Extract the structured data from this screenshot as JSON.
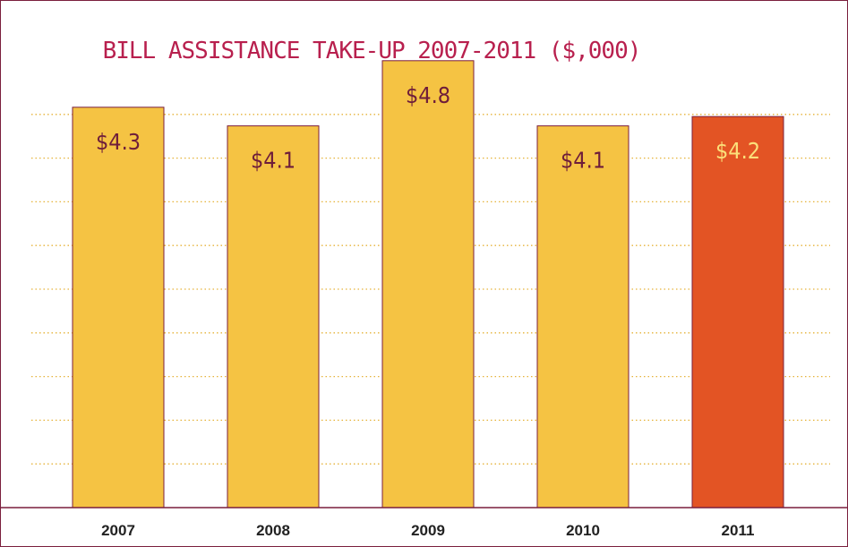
{
  "chart_data": {
    "type": "bar",
    "title": "BILL ASSISTANCE TAKE-UP 2007-2011 ($,000)",
    "xlabel": "",
    "ylabel": "",
    "categories": [
      "2007",
      "2008",
      "2009",
      "2010",
      "2011"
    ],
    "values": [
      4.3,
      4.1,
      4.8,
      4.1,
      4.2
    ],
    "labels": [
      "$4.3",
      "$4.1",
      "$4.8",
      "$4.1",
      "$4.2"
    ],
    "ylim": [
      0,
      5.3
    ],
    "grid": true,
    "legend": "none",
    "highlight_index": 4,
    "colors": {
      "bar": "#f5c343",
      "highlight_bar": "#e35424",
      "bar_border": "#7a1f3d",
      "label": "#6e1d3a",
      "highlight_label": "#fbe07a",
      "grid": "#e6b33a",
      "axis": "#7a1f3d",
      "title": "#b8204e"
    }
  }
}
